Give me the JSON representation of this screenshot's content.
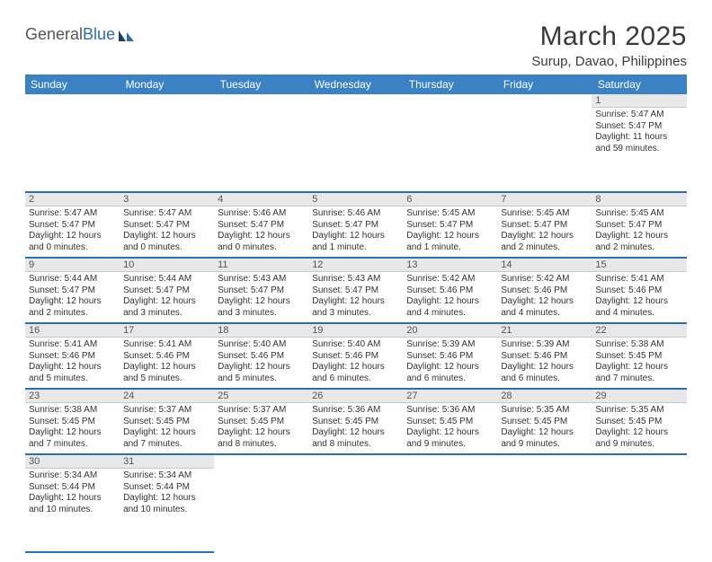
{
  "brand": {
    "part1": "General",
    "part2": "Blue"
  },
  "title": "March 2025",
  "location": "Surup, Davao, Philippines",
  "colors": {
    "header_bg": "#3b82c4",
    "header_text": "#ffffff",
    "daynum_bg": "#e8e8e8",
    "row_divider": "#2a6fb5",
    "text": "#333333",
    "brand_blue": "#2a6fb5"
  },
  "weekdays": [
    "Sunday",
    "Monday",
    "Tuesday",
    "Wednesday",
    "Thursday",
    "Friday",
    "Saturday"
  ],
  "weeks": [
    [
      null,
      null,
      null,
      null,
      null,
      null,
      {
        "n": "1",
        "sr": "Sunrise: 5:47 AM",
        "ss": "Sunset: 5:47 PM",
        "dl1": "Daylight: 11 hours",
        "dl2": "and 59 minutes."
      }
    ],
    [
      {
        "n": "2",
        "sr": "Sunrise: 5:47 AM",
        "ss": "Sunset: 5:47 PM",
        "dl1": "Daylight: 12 hours",
        "dl2": "and 0 minutes."
      },
      {
        "n": "3",
        "sr": "Sunrise: 5:47 AM",
        "ss": "Sunset: 5:47 PM",
        "dl1": "Daylight: 12 hours",
        "dl2": "and 0 minutes."
      },
      {
        "n": "4",
        "sr": "Sunrise: 5:46 AM",
        "ss": "Sunset: 5:47 PM",
        "dl1": "Daylight: 12 hours",
        "dl2": "and 0 minutes."
      },
      {
        "n": "5",
        "sr": "Sunrise: 5:46 AM",
        "ss": "Sunset: 5:47 PM",
        "dl1": "Daylight: 12 hours",
        "dl2": "and 1 minute."
      },
      {
        "n": "6",
        "sr": "Sunrise: 5:45 AM",
        "ss": "Sunset: 5:47 PM",
        "dl1": "Daylight: 12 hours",
        "dl2": "and 1 minute."
      },
      {
        "n": "7",
        "sr": "Sunrise: 5:45 AM",
        "ss": "Sunset: 5:47 PM",
        "dl1": "Daylight: 12 hours",
        "dl2": "and 2 minutes."
      },
      {
        "n": "8",
        "sr": "Sunrise: 5:45 AM",
        "ss": "Sunset: 5:47 PM",
        "dl1": "Daylight: 12 hours",
        "dl2": "and 2 minutes."
      }
    ],
    [
      {
        "n": "9",
        "sr": "Sunrise: 5:44 AM",
        "ss": "Sunset: 5:47 PM",
        "dl1": "Daylight: 12 hours",
        "dl2": "and 2 minutes."
      },
      {
        "n": "10",
        "sr": "Sunrise: 5:44 AM",
        "ss": "Sunset: 5:47 PM",
        "dl1": "Daylight: 12 hours",
        "dl2": "and 3 minutes."
      },
      {
        "n": "11",
        "sr": "Sunrise: 5:43 AM",
        "ss": "Sunset: 5:47 PM",
        "dl1": "Daylight: 12 hours",
        "dl2": "and 3 minutes."
      },
      {
        "n": "12",
        "sr": "Sunrise: 5:43 AM",
        "ss": "Sunset: 5:47 PM",
        "dl1": "Daylight: 12 hours",
        "dl2": "and 3 minutes."
      },
      {
        "n": "13",
        "sr": "Sunrise: 5:42 AM",
        "ss": "Sunset: 5:46 PM",
        "dl1": "Daylight: 12 hours",
        "dl2": "and 4 minutes."
      },
      {
        "n": "14",
        "sr": "Sunrise: 5:42 AM",
        "ss": "Sunset: 5:46 PM",
        "dl1": "Daylight: 12 hours",
        "dl2": "and 4 minutes."
      },
      {
        "n": "15",
        "sr": "Sunrise: 5:41 AM",
        "ss": "Sunset: 5:46 PM",
        "dl1": "Daylight: 12 hours",
        "dl2": "and 4 minutes."
      }
    ],
    [
      {
        "n": "16",
        "sr": "Sunrise: 5:41 AM",
        "ss": "Sunset: 5:46 PM",
        "dl1": "Daylight: 12 hours",
        "dl2": "and 5 minutes."
      },
      {
        "n": "17",
        "sr": "Sunrise: 5:41 AM",
        "ss": "Sunset: 5:46 PM",
        "dl1": "Daylight: 12 hours",
        "dl2": "and 5 minutes."
      },
      {
        "n": "18",
        "sr": "Sunrise: 5:40 AM",
        "ss": "Sunset: 5:46 PM",
        "dl1": "Daylight: 12 hours",
        "dl2": "and 5 minutes."
      },
      {
        "n": "19",
        "sr": "Sunrise: 5:40 AM",
        "ss": "Sunset: 5:46 PM",
        "dl1": "Daylight: 12 hours",
        "dl2": "and 6 minutes."
      },
      {
        "n": "20",
        "sr": "Sunrise: 5:39 AM",
        "ss": "Sunset: 5:46 PM",
        "dl1": "Daylight: 12 hours",
        "dl2": "and 6 minutes."
      },
      {
        "n": "21",
        "sr": "Sunrise: 5:39 AM",
        "ss": "Sunset: 5:46 PM",
        "dl1": "Daylight: 12 hours",
        "dl2": "and 6 minutes."
      },
      {
        "n": "22",
        "sr": "Sunrise: 5:38 AM",
        "ss": "Sunset: 5:45 PM",
        "dl1": "Daylight: 12 hours",
        "dl2": "and 7 minutes."
      }
    ],
    [
      {
        "n": "23",
        "sr": "Sunrise: 5:38 AM",
        "ss": "Sunset: 5:45 PM",
        "dl1": "Daylight: 12 hours",
        "dl2": "and 7 minutes."
      },
      {
        "n": "24",
        "sr": "Sunrise: 5:37 AM",
        "ss": "Sunset: 5:45 PM",
        "dl1": "Daylight: 12 hours",
        "dl2": "and 7 minutes."
      },
      {
        "n": "25",
        "sr": "Sunrise: 5:37 AM",
        "ss": "Sunset: 5:45 PM",
        "dl1": "Daylight: 12 hours",
        "dl2": "and 8 minutes."
      },
      {
        "n": "26",
        "sr": "Sunrise: 5:36 AM",
        "ss": "Sunset: 5:45 PM",
        "dl1": "Daylight: 12 hours",
        "dl2": "and 8 minutes."
      },
      {
        "n": "27",
        "sr": "Sunrise: 5:36 AM",
        "ss": "Sunset: 5:45 PM",
        "dl1": "Daylight: 12 hours",
        "dl2": "and 9 minutes."
      },
      {
        "n": "28",
        "sr": "Sunrise: 5:35 AM",
        "ss": "Sunset: 5:45 PM",
        "dl1": "Daylight: 12 hours",
        "dl2": "and 9 minutes."
      },
      {
        "n": "29",
        "sr": "Sunrise: 5:35 AM",
        "ss": "Sunset: 5:45 PM",
        "dl1": "Daylight: 12 hours",
        "dl2": "and 9 minutes."
      }
    ],
    [
      {
        "n": "30",
        "sr": "Sunrise: 5:34 AM",
        "ss": "Sunset: 5:44 PM",
        "dl1": "Daylight: 12 hours",
        "dl2": "and 10 minutes."
      },
      {
        "n": "31",
        "sr": "Sunrise: 5:34 AM",
        "ss": "Sunset: 5:44 PM",
        "dl1": "Daylight: 12 hours",
        "dl2": "and 10 minutes."
      },
      null,
      null,
      null,
      null,
      null
    ]
  ]
}
